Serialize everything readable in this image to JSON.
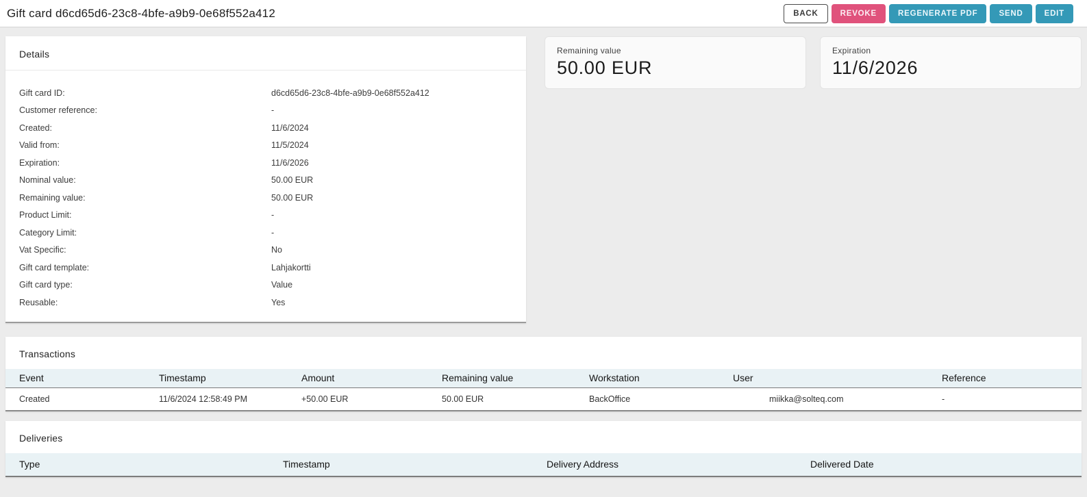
{
  "header": {
    "title": "Gift card d6cd65d6-23c8-4bfe-a9b9-0e68f552a412",
    "buttons": [
      {
        "label": "BACK",
        "variant": "outline"
      },
      {
        "label": "REVOKE",
        "variant": "danger"
      },
      {
        "label": "REGENERATE PDF",
        "variant": "primary"
      },
      {
        "label": "SEND",
        "variant": "primary"
      },
      {
        "label": "EDIT",
        "variant": "primary"
      }
    ]
  },
  "details": {
    "title": "Details",
    "rows": [
      {
        "label": "Gift card ID:",
        "value": "d6cd65d6-23c8-4bfe-a9b9-0e68f552a412"
      },
      {
        "label": "Customer reference:",
        "value": "-"
      },
      {
        "label": "Created:",
        "value": "11/6/2024"
      },
      {
        "label": "Valid from:",
        "value": "11/5/2024"
      },
      {
        "label": "Expiration:",
        "value": "11/6/2026"
      },
      {
        "label": "Nominal value:",
        "value": "50.00 EUR"
      },
      {
        "label": "Remaining value:",
        "value": "50.00 EUR"
      },
      {
        "label": "Product Limit:",
        "value": "-"
      },
      {
        "label": "Category Limit:",
        "value": "-"
      },
      {
        "label": "Vat Specific:",
        "value": "No"
      },
      {
        "label": "Gift card template:",
        "value": "Lahjakortti"
      },
      {
        "label": "Gift card type:",
        "value": "Value"
      },
      {
        "label": "Reusable:",
        "value": "Yes"
      }
    ]
  },
  "summary_cards": [
    {
      "label": "Remaining value",
      "value": "50.00 EUR"
    },
    {
      "label": "Expiration",
      "value": "11/6/2026"
    }
  ],
  "transactions": {
    "title": "Transactions",
    "columns": [
      "Event",
      "Timestamp",
      "Amount",
      "Remaining value",
      "Workstation",
      "User",
      "Reference"
    ],
    "rows": [
      [
        "Created",
        "11/6/2024 12:58:49 PM",
        "+50.00 EUR",
        "50.00 EUR",
        "BackOffice",
        "miikka@solteq.com",
        "-"
      ]
    ]
  },
  "deliveries": {
    "title": "Deliveries",
    "columns": [
      "Type",
      "Timestamp",
      "Delivery Address",
      "Delivered Date"
    ],
    "rows": []
  },
  "colors": {
    "accent_pink": "#e0527c",
    "accent_teal": "#3499b7",
    "table_header_bg": "#e9f2f5",
    "page_bg": "#ececec"
  }
}
